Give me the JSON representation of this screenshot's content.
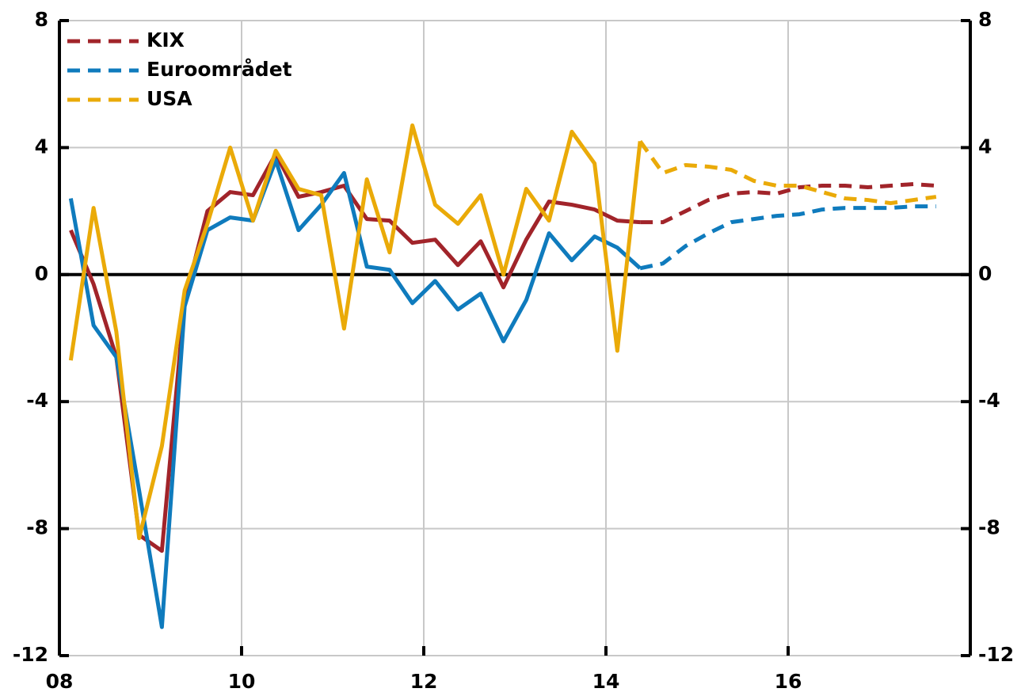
{
  "chart_data": {
    "type": "line",
    "x": [
      2008.125,
      2008.375,
      2008.625,
      2008.875,
      2009.125,
      2009.375,
      2009.625,
      2009.875,
      2010.125,
      2010.375,
      2010.625,
      2010.875,
      2011.125,
      2011.375,
      2011.625,
      2011.875,
      2012.125,
      2012.375,
      2012.625,
      2012.875,
      2013.125,
      2013.375,
      2013.625,
      2013.875,
      2014.125,
      2014.375,
      2014.625,
      2014.875,
      2015.125,
      2015.375,
      2015.625,
      2015.875,
      2016.125,
      2016.375,
      2016.625,
      2016.875,
      2017.125,
      2017.375,
      2017.625
    ],
    "series": [
      {
        "name": "KIX",
        "color": "#a1242a",
        "values": [
          1.4,
          -0.3,
          -2.6,
          -8.2,
          -8.7,
          -0.8,
          2.0,
          2.6,
          2.5,
          3.8,
          2.45,
          2.6,
          2.8,
          1.75,
          1.7,
          1.0,
          1.1,
          0.3,
          1.05,
          -0.4,
          1.1,
          2.3,
          2.2,
          2.05,
          1.7,
          1.65,
          1.65,
          2.0,
          2.35,
          2.55,
          2.6,
          2.55,
          2.75,
          2.8,
          2.8,
          2.75,
          2.8,
          2.85,
          2.8
        ]
      },
      {
        "name": "Euroområdet",
        "color": "#0f7bbd",
        "values": [
          2.4,
          -1.6,
          -2.6,
          -6.8,
          -11.1,
          -1.0,
          1.4,
          1.8,
          1.7,
          3.6,
          1.4,
          2.2,
          3.2,
          0.25,
          0.15,
          -0.9,
          -0.2,
          -1.1,
          -0.6,
          -2.1,
          -0.8,
          1.3,
          0.45,
          1.2,
          0.85,
          0.2,
          0.35,
          0.9,
          1.3,
          1.65,
          1.75,
          1.85,
          1.9,
          2.05,
          2.1,
          2.1,
          2.1,
          2.15,
          2.15
        ]
      },
      {
        "name": "USA",
        "color": "#eaaa08",
        "values": [
          -2.7,
          2.1,
          -1.8,
          -8.3,
          -5.4,
          -0.5,
          1.6,
          4.0,
          1.7,
          3.9,
          2.7,
          2.5,
          -1.7,
          3.0,
          0.7,
          4.7,
          2.2,
          1.6,
          2.5,
          0.0,
          2.7,
          1.7,
          4.5,
          3.5,
          -2.4,
          4.2,
          3.2,
          3.45,
          3.4,
          3.3,
          2.95,
          2.8,
          2.8,
          2.6,
          2.4,
          2.35,
          2.25,
          2.35,
          2.45
        ]
      }
    ],
    "forecast_from": 2014.375,
    "xlim": [
      2008,
      2018
    ],
    "xticks": [
      {
        "value": 2008,
        "label": "08"
      },
      {
        "value": 2010,
        "label": "10"
      },
      {
        "value": 2012,
        "label": "12"
      },
      {
        "value": 2014,
        "label": "14"
      },
      {
        "value": 2016,
        "label": "16"
      }
    ],
    "ylim": [
      -12,
      8
    ],
    "yticks": [
      -12,
      -8,
      -4,
      0,
      4,
      8
    ],
    "y2lim": [
      -12,
      8
    ],
    "y2ticks": [
      -12,
      -8,
      -4,
      0,
      4,
      8
    ],
    "grid": true,
    "legend": "upper left"
  }
}
